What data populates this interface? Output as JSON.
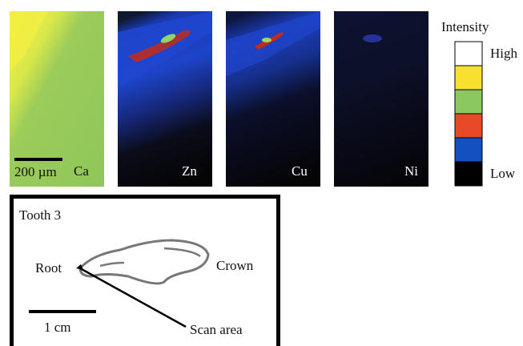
{
  "panels": [
    {
      "element": "Ca",
      "scale_bar": "200 µm"
    },
    {
      "element": "Zn"
    },
    {
      "element": "Cu"
    },
    {
      "element": "Ni"
    }
  ],
  "legend": {
    "title": "Intensity",
    "high": "High",
    "low": "Low"
  },
  "inset": {
    "title": "Tooth 3",
    "root": "Root",
    "crown": "Crown",
    "scale_bar": "1 cm",
    "scan_area": "Scan area"
  }
}
